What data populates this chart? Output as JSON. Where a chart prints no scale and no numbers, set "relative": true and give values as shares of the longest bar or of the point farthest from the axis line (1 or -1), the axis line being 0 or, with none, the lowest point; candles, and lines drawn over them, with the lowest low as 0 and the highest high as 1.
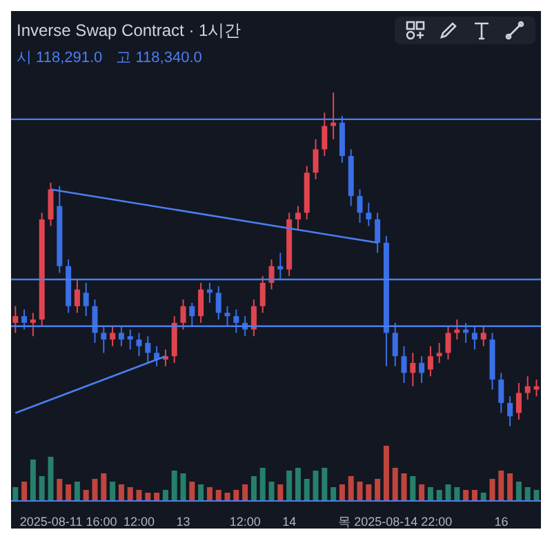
{
  "chart_data": [
    {
      "type": "candlestick",
      "title": "Inverse Swap Contract · 1시간",
      "annotations": [
        "시 118,291.0",
        "고 118,340.0"
      ],
      "relative": true,
      "grid": false,
      "ohlc": [
        [
          0.31,
          0.36,
          0.28,
          0.33
        ],
        [
          0.33,
          0.35,
          0.29,
          0.31
        ],
        [
          0.31,
          0.34,
          0.27,
          0.32
        ],
        [
          0.32,
          0.64,
          0.3,
          0.62
        ],
        [
          0.62,
          0.73,
          0.6,
          0.71
        ],
        [
          0.66,
          0.72,
          0.46,
          0.48
        ],
        [
          0.48,
          0.5,
          0.34,
          0.36
        ],
        [
          0.36,
          0.44,
          0.34,
          0.41
        ],
        [
          0.4,
          0.43,
          0.33,
          0.36
        ],
        [
          0.36,
          0.38,
          0.25,
          0.28
        ],
        [
          0.28,
          0.3,
          0.22,
          0.26
        ],
        [
          0.26,
          0.3,
          0.24,
          0.28
        ],
        [
          0.28,
          0.3,
          0.24,
          0.26
        ],
        [
          0.27,
          0.29,
          0.23,
          0.26
        ],
        [
          0.26,
          0.28,
          0.21,
          0.24
        ],
        [
          0.25,
          0.27,
          0.19,
          0.22
        ],
        [
          0.22,
          0.24,
          0.18,
          0.2
        ],
        [
          0.2,
          0.23,
          0.18,
          0.21
        ],
        [
          0.21,
          0.33,
          0.19,
          0.31
        ],
        [
          0.31,
          0.38,
          0.29,
          0.36
        ],
        [
          0.36,
          0.37,
          0.3,
          0.33
        ],
        [
          0.33,
          0.43,
          0.31,
          0.41
        ],
        [
          0.41,
          0.43,
          0.37,
          0.4
        ],
        [
          0.4,
          0.42,
          0.32,
          0.34
        ],
        [
          0.34,
          0.36,
          0.3,
          0.33
        ],
        [
          0.33,
          0.35,
          0.28,
          0.31
        ],
        [
          0.31,
          0.33,
          0.27,
          0.29
        ],
        [
          0.29,
          0.38,
          0.27,
          0.36
        ],
        [
          0.36,
          0.45,
          0.34,
          0.43
        ],
        [
          0.43,
          0.5,
          0.41,
          0.48
        ],
        [
          0.48,
          0.52,
          0.44,
          0.47
        ],
        [
          0.47,
          0.64,
          0.45,
          0.62
        ],
        [
          0.62,
          0.66,
          0.59,
          0.64
        ],
        [
          0.64,
          0.78,
          0.62,
          0.76
        ],
        [
          0.76,
          0.86,
          0.74,
          0.83
        ],
        [
          0.83,
          0.94,
          0.81,
          0.9
        ],
        [
          0.9,
          1,
          0.86,
          0.91
        ],
        [
          0.91,
          0.93,
          0.79,
          0.81
        ],
        [
          0.81,
          0.83,
          0.66,
          0.69
        ],
        [
          0.69,
          0.71,
          0.61,
          0.64
        ],
        [
          0.64,
          0.67,
          0.6,
          0.62
        ],
        [
          0.62,
          0.64,
          0.52,
          0.55
        ],
        [
          0.55,
          0.57,
          0.18,
          0.28
        ],
        [
          0.28,
          0.31,
          0.18,
          0.21
        ],
        [
          0.21,
          0.24,
          0.13,
          0.16
        ],
        [
          0.16,
          0.22,
          0.12,
          0.19
        ],
        [
          0.19,
          0.21,
          0.13,
          0.16
        ],
        [
          0.17,
          0.24,
          0.15,
          0.21
        ],
        [
          0.21,
          0.25,
          0.19,
          0.22
        ],
        [
          0.22,
          0.3,
          0.2,
          0.28
        ],
        [
          0.28,
          0.32,
          0.26,
          0.29
        ],
        [
          0.29,
          0.31,
          0.25,
          0.28
        ],
        [
          0.28,
          0.3,
          0.23,
          0.26
        ],
        [
          0.26,
          0.3,
          0.24,
          0.28
        ],
        [
          0.26,
          0.28,
          0.11,
          0.14
        ],
        [
          0.14,
          0.16,
          0.04,
          0.07
        ],
        [
          0.07,
          0.09,
          0,
          0.03
        ],
        [
          0.04,
          0.13,
          0.02,
          0.1
        ],
        [
          0.1,
          0.15,
          0.08,
          0.12
        ],
        [
          0.11,
          0.14,
          0.09,
          0.12
        ]
      ],
      "colors": [
        "#e0454f",
        "#3a6fe6",
        "#e0454f",
        "#e0454f",
        "#e0454f",
        "#3a6fe6",
        "#3a6fe6",
        "#e0454f",
        "#3a6fe6",
        "#3a6fe6",
        "#3a6fe6",
        "#e0454f",
        "#3a6fe6",
        "#3a6fe6",
        "#3a6fe6",
        "#3a6fe6",
        "#3a6fe6",
        "#e0454f",
        "#e0454f",
        "#e0454f",
        "#3a6fe6",
        "#e0454f",
        "#3a6fe6",
        "#3a6fe6",
        "#3a6fe6",
        "#3a6fe6",
        "#3a6fe6",
        "#e0454f",
        "#e0454f",
        "#e0454f",
        "#3a6fe6",
        "#e0454f",
        "#e0454f",
        "#e0454f",
        "#e0454f",
        "#e0454f",
        "#e0454f",
        "#3a6fe6",
        "#3a6fe6",
        "#3a6fe6",
        "#3a6fe6",
        "#3a6fe6",
        "#3a6fe6",
        "#3a6fe6",
        "#3a6fe6",
        "#e0454f",
        "#3a6fe6",
        "#e0454f",
        "#e0454f",
        "#e0454f",
        "#e0454f",
        "#3a6fe6",
        "#3a6fe6",
        "#e0454f",
        "#3a6fe6",
        "#3a6fe6",
        "#3a6fe6",
        "#e0454f",
        "#e0454f",
        "#e0454f"
      ],
      "series": [
        {
          "type": "line",
          "color": "#4a7ff0",
          "values": [
            null,
            null,
            null,
            null,
            0.71,
            null,
            null,
            null,
            null,
            null,
            null,
            null,
            null,
            null,
            null,
            null,
            null,
            null,
            null,
            null,
            null,
            null,
            null,
            null,
            null,
            null,
            null,
            null,
            null,
            null,
            null,
            null,
            null,
            null,
            null,
            null,
            null,
            null,
            null,
            null,
            null,
            0.55,
            null,
            null,
            null,
            null,
            null,
            null,
            null,
            null,
            null,
            null,
            null,
            null,
            null,
            null,
            null,
            null,
            null,
            null
          ]
        },
        {
          "type": "line",
          "color": "#4a7ff0",
          "values": [
            0.04,
            null,
            null,
            null,
            null,
            null,
            null,
            null,
            null,
            null,
            null,
            null,
            null,
            null,
            null,
            null,
            null,
            0.21,
            null,
            null,
            null,
            null,
            null,
            null,
            null,
            null,
            null,
            null,
            null,
            null,
            null,
            null,
            null,
            null,
            null,
            null,
            null,
            null,
            null,
            null,
            null,
            null,
            null,
            null,
            null,
            null,
            null,
            null,
            null,
            null,
            null,
            null,
            null,
            null,
            null,
            null,
            null,
            null,
            null,
            null
          ]
        }
      ],
      "ref_lines": [
        {
          "axis": "y",
          "value": 0.92,
          "color": "#4a7ff0"
        },
        {
          "axis": "y",
          "value": 0.44,
          "color": "#4a7ff0"
        },
        {
          "axis": "y",
          "value": 0.3,
          "color": "#4a7ff0"
        }
      ]
    },
    {
      "type": "bar",
      "relative": true,
      "grid": false,
      "categories": [
        null,
        null,
        null,
        null,
        null,
        null,
        "2025-08-11 16:00",
        null,
        null,
        null,
        null,
        null,
        null,
        null,
        "12:00",
        null,
        null,
        null,
        null,
        "13",
        null,
        null,
        null,
        null,
        null,
        null,
        "12:00",
        null,
        null,
        null,
        null,
        "14",
        null,
        null,
        null,
        null,
        null,
        null,
        null,
        null,
        null,
        null,
        null,
        "목 2025-08-14 22:00",
        null,
        null,
        null,
        null,
        null,
        null,
        null,
        null,
        null,
        null,
        null,
        "16",
        null,
        null,
        null,
        null
      ],
      "values": [
        0.25,
        0.35,
        0.75,
        0.45,
        0.8,
        0.4,
        0.3,
        0.35,
        0.2,
        0.4,
        0.5,
        0.35,
        0.3,
        0.25,
        0.2,
        0.15,
        0.15,
        0.2,
        0.55,
        0.5,
        0.35,
        0.3,
        0.25,
        0.2,
        0.15,
        0.2,
        0.3,
        0.45,
        0.6,
        0.35,
        0.3,
        0.55,
        0.6,
        0.4,
        0.55,
        0.6,
        0.25,
        0.3,
        0.45,
        0.35,
        0.3,
        0.4,
        1,
        0.6,
        0.5,
        0.45,
        0.3,
        0.25,
        0.2,
        0.3,
        0.25,
        0.2,
        0.2,
        0.15,
        0.4,
        0.55,
        0.5,
        0.35,
        0.25,
        0.2
      ],
      "colors": [
        "#26806a",
        "#c0453d",
        "#26806a",
        "#26806a",
        "#26806a",
        "#c0453d",
        "#c0453d",
        "#26806a",
        "#c0453d",
        "#c0453d",
        "#c0453d",
        "#26806a",
        "#c0453d",
        "#c0453d",
        "#c0453d",
        "#c0453d",
        "#c0453d",
        "#26806a",
        "#26806a",
        "#26806a",
        "#c0453d",
        "#26806a",
        "#c0453d",
        "#c0453d",
        "#c0453d",
        "#c0453d",
        "#c0453d",
        "#26806a",
        "#26806a",
        "#26806a",
        "#c0453d",
        "#26806a",
        "#26806a",
        "#26806a",
        "#26806a",
        "#26806a",
        "#26806a",
        "#c0453d",
        "#c0453d",
        "#c0453d",
        "#c0453d",
        "#c0453d",
        "#c0453d",
        "#c0453d",
        "#c0453d",
        "#26806a",
        "#c0453d",
        "#26806a",
        "#26806a",
        "#26806a",
        "#26806a",
        "#c0453d",
        "#c0453d",
        "#26806a",
        "#c0453d",
        "#c0453d",
        "#c0453d",
        "#26806a",
        "#26806a",
        "#26806a"
      ]
    }
  ]
}
